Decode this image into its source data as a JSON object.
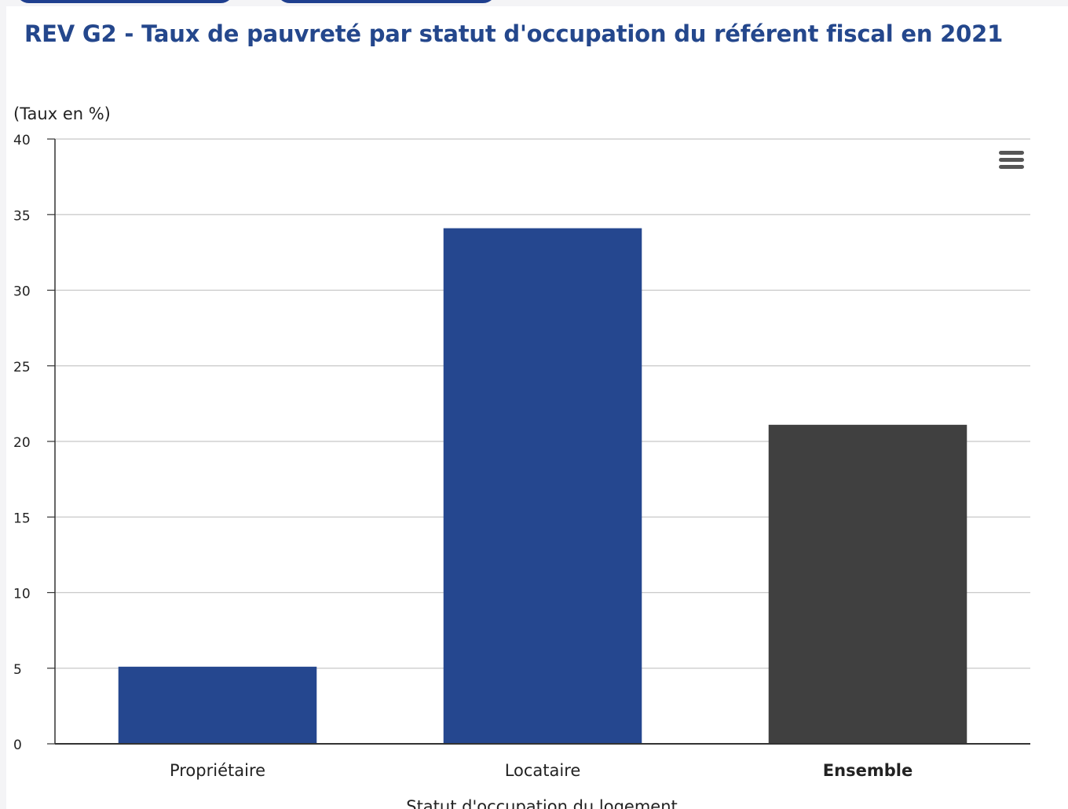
{
  "chart_data": {
    "type": "bar",
    "title": "REV G2 - Taux de pauvreté par statut d'occupation du référent fiscal en 2021",
    "ylabel": "(Taux en %)",
    "xlabel": "Statut d'occupation du logement",
    "categories": [
      "Propriétaire",
      "Locataire",
      "Ensemble"
    ],
    "values": [
      5.1,
      34.1,
      21.1
    ],
    "bar_colors": [
      "#25478f",
      "#25478f",
      "#404040"
    ],
    "bold_categories": [
      false,
      false,
      true
    ],
    "ylim": [
      0,
      40
    ],
    "yticks": [
      0,
      5,
      10,
      15,
      20,
      25,
      30,
      35,
      40
    ],
    "grid": true,
    "legend": "none"
  },
  "colors": {
    "title": "#24478c",
    "gridline": "#c8c8c8",
    "axis": "#333333",
    "text": "#222222"
  },
  "icons": {
    "menu": "hamburger-menu-icon"
  }
}
